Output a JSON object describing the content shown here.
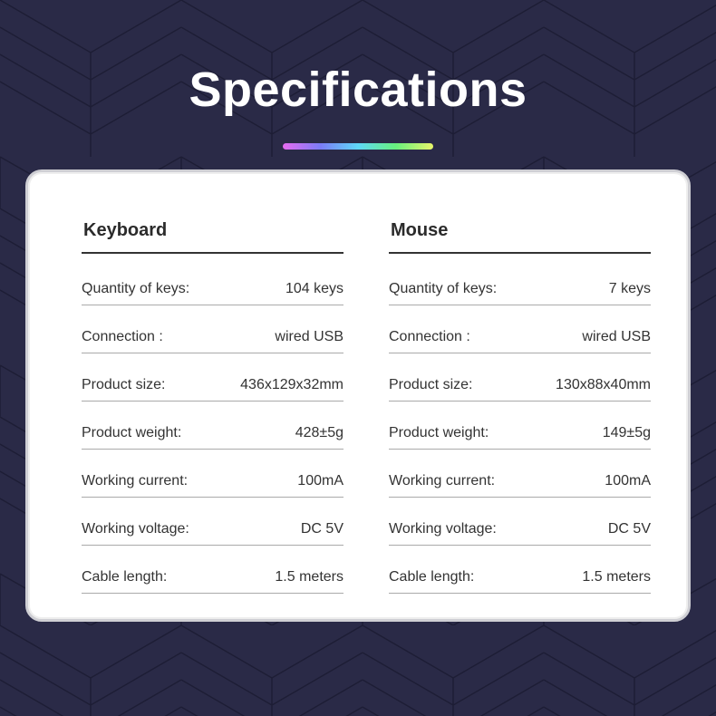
{
  "title": "Specifications",
  "colors": {
    "background": "#2a2a47",
    "card": "#ffffff",
    "rainbow": [
      "#e66cf0",
      "#7b7cf6",
      "#5fd8f7",
      "#67f07e",
      "#e8f56a"
    ]
  },
  "keyboard": {
    "heading": "Keyboard",
    "rows": [
      {
        "label": "Quantity of keys:",
        "value": "104 keys"
      },
      {
        "label": "Connection :",
        "value": "wired USB"
      },
      {
        "label": "Product size:",
        "value": "436x129x32mm"
      },
      {
        "label": "Product weight:",
        "value": "428±5g"
      },
      {
        "label": "Working current:",
        "value": "100mA"
      },
      {
        "label": "Working voltage:",
        "value": "DC 5V"
      },
      {
        "label": "Cable length:",
        "value": "1.5 meters"
      }
    ]
  },
  "mouse": {
    "heading": "Mouse",
    "rows": [
      {
        "label": "Quantity of keys:",
        "value": "7 keys"
      },
      {
        "label": "Connection :",
        "value": "wired USB"
      },
      {
        "label": "Product size:",
        "value": "130x88x40mm"
      },
      {
        "label": "Product weight:",
        "value": "149±5g"
      },
      {
        "label": "Working current:",
        "value": "100mA"
      },
      {
        "label": "Working voltage:",
        "value": "DC 5V"
      },
      {
        "label": "Cable length:",
        "value": "1.5 meters"
      }
    ]
  }
}
